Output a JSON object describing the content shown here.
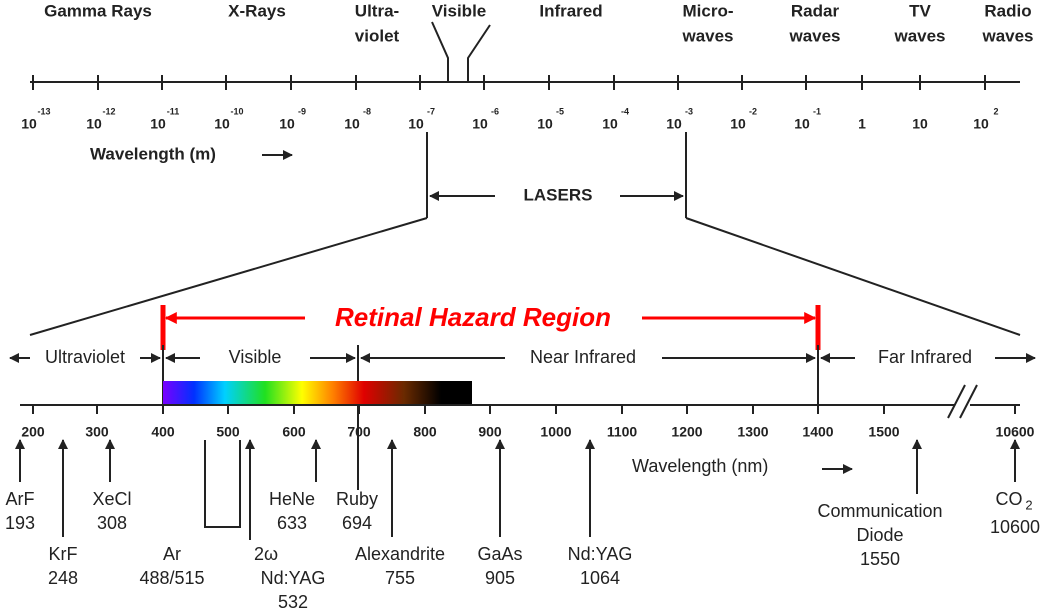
{
  "bands": [
    [
      "Gamma Rays"
    ],
    [
      "X-Rays"
    ],
    [
      "Ultra-",
      "violet"
    ],
    [
      "Visible"
    ],
    [
      "Infrared"
    ],
    [
      "Micro-",
      "waves"
    ],
    [
      "Radar",
      "waves"
    ],
    [
      "TV",
      "waves"
    ],
    [
      "Radio",
      "waves"
    ]
  ],
  "meter_scale": {
    "ticks": [
      {
        "base": "10",
        "exp": "-13"
      },
      {
        "base": "10",
        "exp": "-12"
      },
      {
        "base": "10",
        "exp": "-11"
      },
      {
        "base": "10",
        "exp": "-10"
      },
      {
        "base": "10",
        "exp": "-9"
      },
      {
        "base": "10",
        "exp": "-8"
      },
      {
        "base": "10",
        "exp": "-7"
      },
      {
        "base": "10",
        "exp": "-6"
      },
      {
        "base": "10",
        "exp": "-5"
      },
      {
        "base": "10",
        "exp": "-4"
      },
      {
        "base": "10",
        "exp": "-3"
      },
      {
        "base": "10",
        "exp": "-2"
      },
      {
        "base": "10",
        "exp": "-1"
      },
      {
        "base": "1"
      },
      {
        "base": "10"
      },
      {
        "base": "10",
        "exp": "2"
      }
    ],
    "label": "Wavelength (m)"
  },
  "lasers_label": "LASERS",
  "hazard_label": "Retinal Hazard Region",
  "regions": [
    "Ultraviolet",
    "Visible",
    "Near Infrared",
    "Far Infrared"
  ],
  "nm_scale": {
    "ticks": [
      "200",
      "300",
      "400",
      "500",
      "600",
      "700",
      "800",
      "900",
      "1000",
      "1100",
      "1200",
      "1300",
      "1400",
      "1500",
      "10600"
    ],
    "label": "Wavelength (nm)"
  },
  "lasers": [
    {
      "name": [
        "ArF"
      ],
      "wavelength": "193"
    },
    {
      "name": [
        "KrF"
      ],
      "wavelength": "248"
    },
    {
      "name": [
        "XeCl"
      ],
      "wavelength": "308"
    },
    {
      "name": [
        "Ar"
      ],
      "wavelength": "488/515"
    },
    {
      "name": [
        "2ω",
        "Nd:YAG"
      ],
      "wavelength": "532"
    },
    {
      "name": [
        "HeNe"
      ],
      "wavelength": "633"
    },
    {
      "name": [
        "Ruby"
      ],
      "wavelength": "694"
    },
    {
      "name": [
        "Alexandrite"
      ],
      "wavelength": "755"
    },
    {
      "name": [
        "GaAs"
      ],
      "wavelength": "905"
    },
    {
      "name": [
        "Nd:YAG"
      ],
      "wavelength": "1064"
    },
    {
      "name": [
        "Communication",
        "Diode"
      ],
      "wavelength": "1550"
    },
    {
      "name": [
        "CO"
      ],
      "subscript": "2",
      "wavelength": "10600"
    }
  ]
}
